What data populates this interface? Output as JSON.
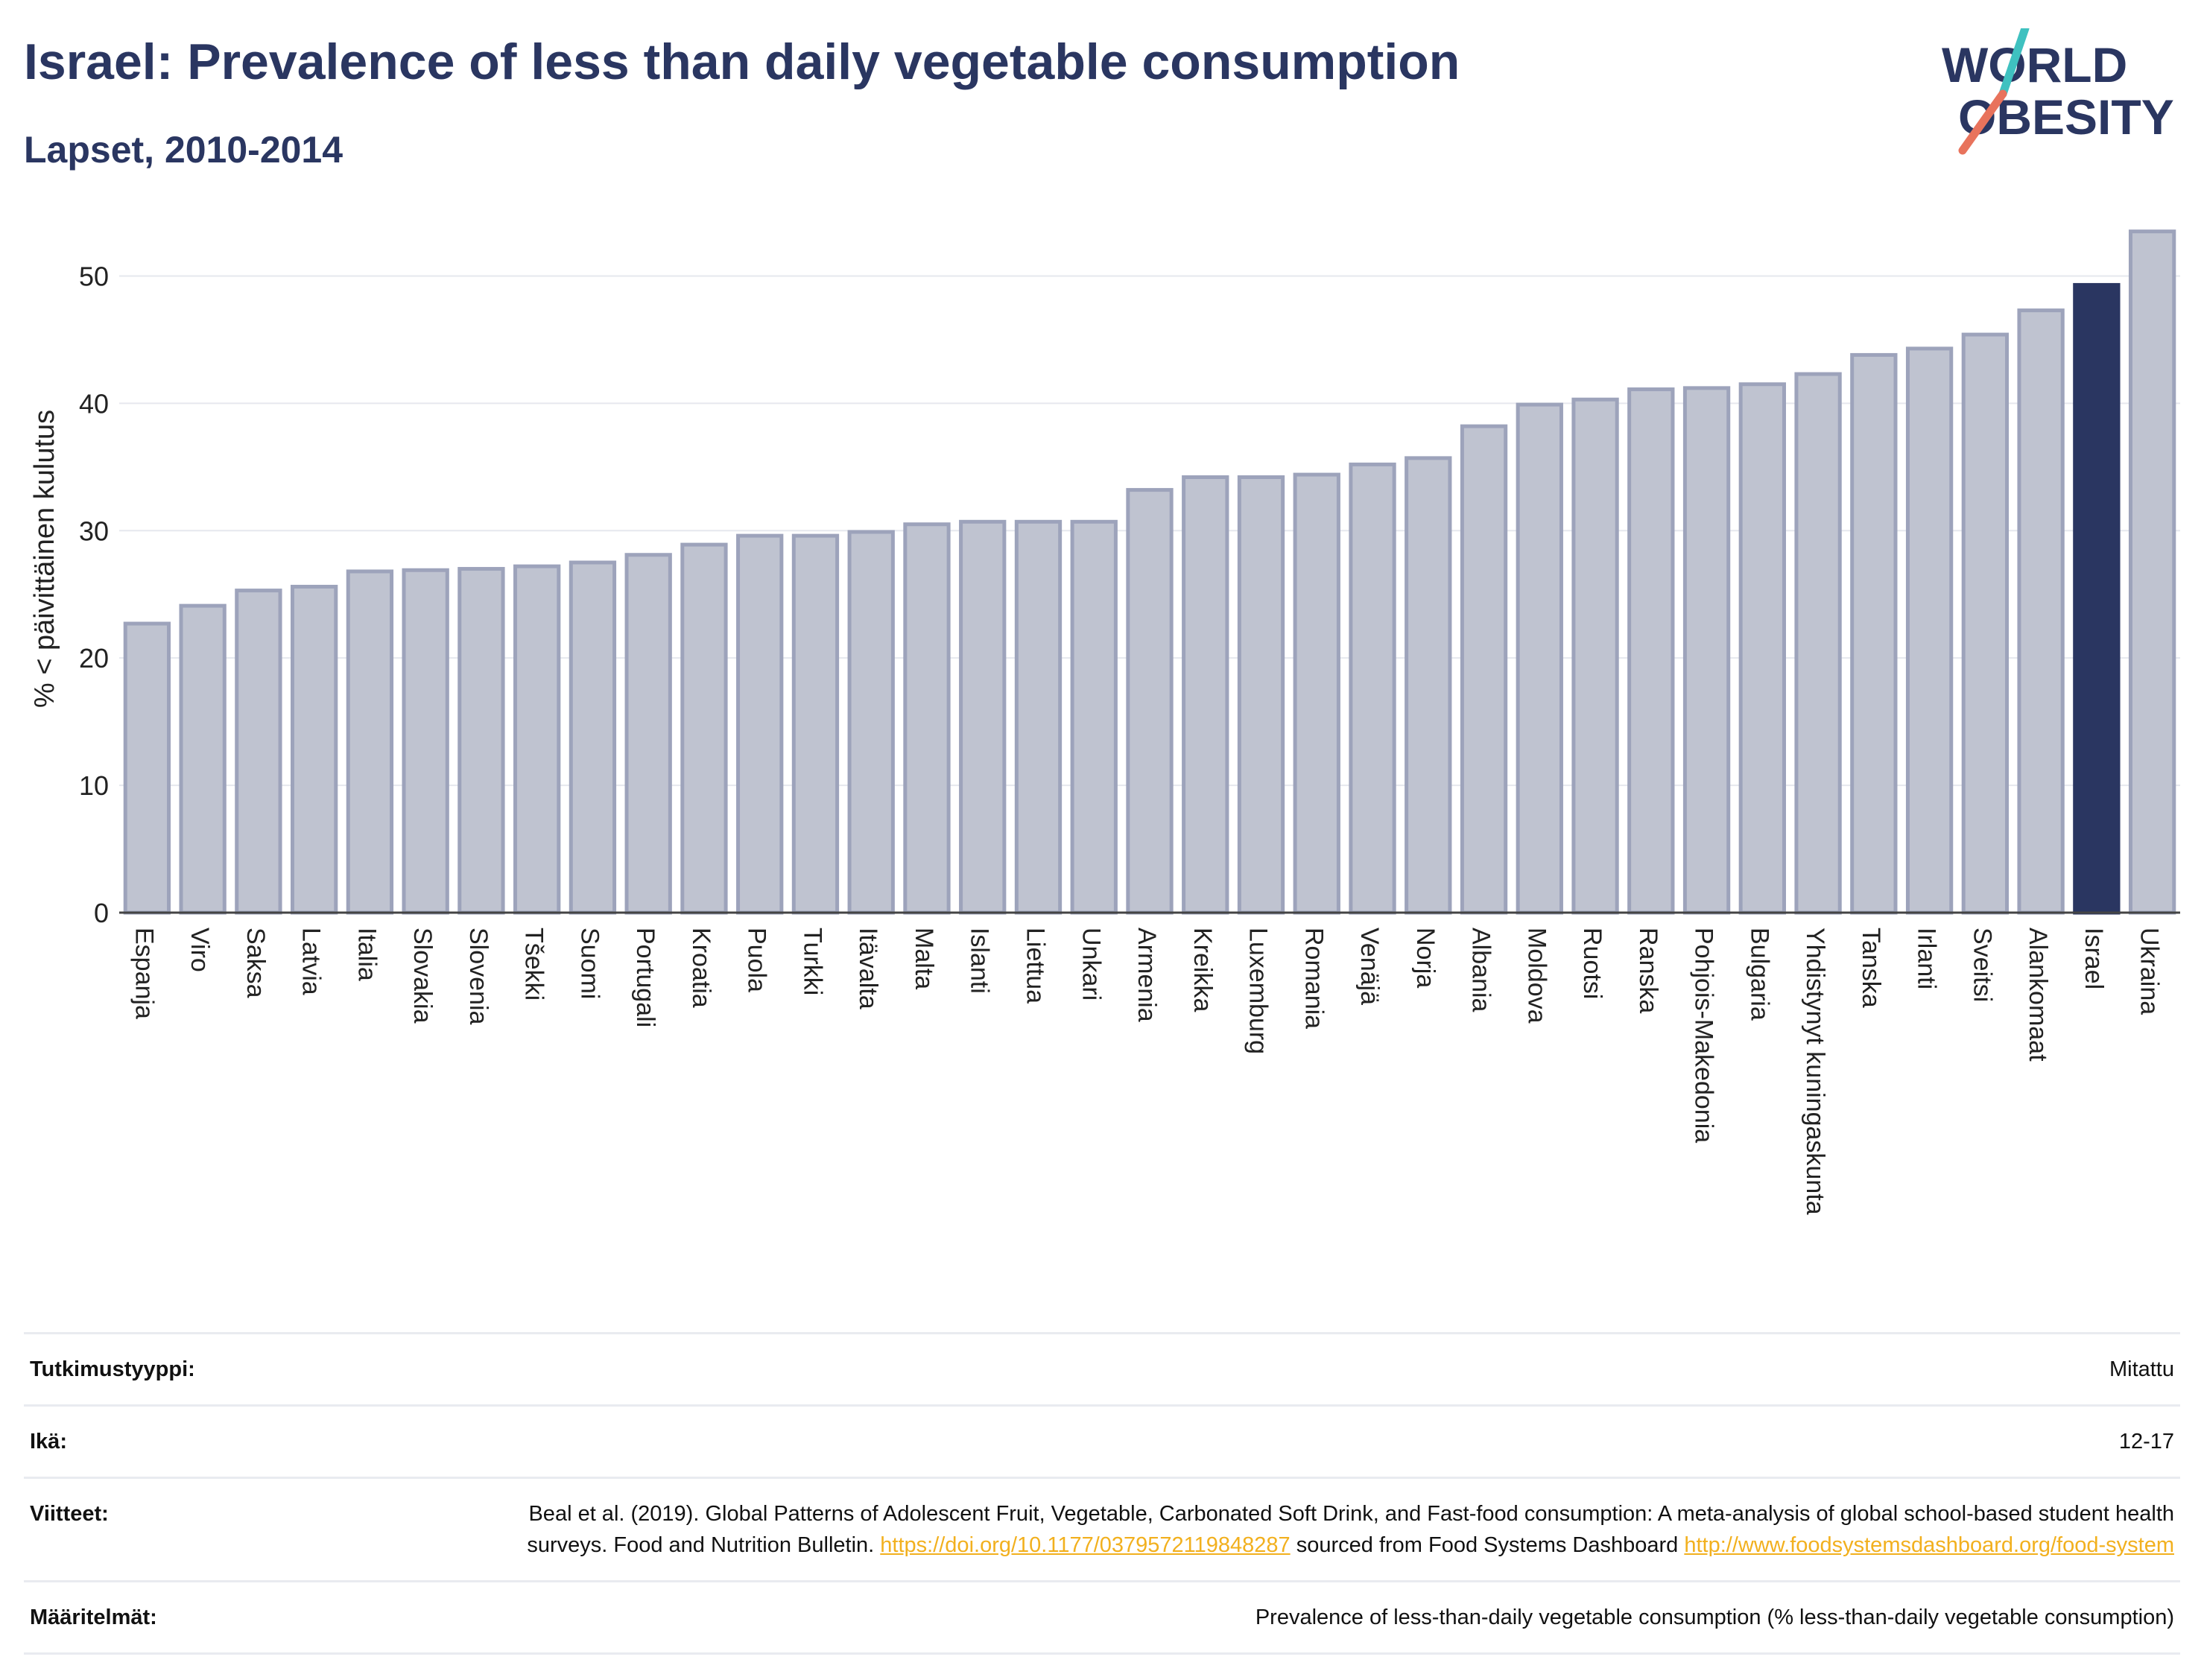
{
  "header": {
    "title": "Israel: Prevalence of less than daily vegetable consumption",
    "subtitle": "Lapset, 2010-2014",
    "logo_line1": "WORLD",
    "logo_line2": "OBESITY"
  },
  "colors": {
    "bar_default": "#bfc3d0",
    "bar_border": "#9da3bb",
    "bar_highlight": "#2a3661",
    "title": "#2a3661",
    "link": "#f2b01e",
    "logo_teal": "#3fc1c0",
    "logo_coral": "#e8735c"
  },
  "chart_data": {
    "type": "bar",
    "ylabel": "% < päivittäinen kulutus",
    "ylim": [
      0,
      55
    ],
    "yticks": [
      0,
      10,
      20,
      30,
      40,
      50
    ],
    "grid": true,
    "highlight": "Israel",
    "categories": [
      "Espanja",
      "Viro",
      "Saksa",
      "Latvia",
      "Italia",
      "Slovakia",
      "Slovenia",
      "Tšekki",
      "Suomi",
      "Portugali",
      "Kroatia",
      "Puola",
      "Turkki",
      "Itävalta",
      "Malta",
      "Islanti",
      "Liettua",
      "Unkari",
      "Armenia",
      "Kreikka",
      "Luxemburg",
      "Romania",
      "Venäjä",
      "Norja",
      "Albania",
      "Moldova",
      "Ruotsi",
      "Ranska",
      "Pohjois-Makedonia",
      "Bulgaria",
      "Yhdistynyt kuningaskunta",
      "Tanska",
      "Irlanti",
      "Sveitsi",
      "Alankomaat",
      "Israel",
      "Ukraina"
    ],
    "values": [
      22.7,
      24.1,
      25.3,
      25.6,
      26.8,
      26.9,
      27.0,
      27.2,
      27.5,
      28.1,
      28.9,
      29.6,
      29.6,
      29.9,
      30.5,
      30.7,
      30.7,
      30.7,
      33.2,
      34.2,
      34.2,
      34.4,
      35.2,
      35.7,
      38.2,
      39.9,
      40.3,
      41.1,
      41.2,
      41.5,
      42.3,
      43.8,
      44.3,
      45.4,
      47.3,
      49.3,
      53.5
    ]
  },
  "meta": {
    "study_type_label": "Tutkimustyyppi:",
    "study_type_value": "Mitattu",
    "age_label": "Ikä:",
    "age_value": "12-17",
    "refs_label": "Viitteet:",
    "refs_text_1": "Beal et al. (2019). Global Patterns of Adolescent Fruit, Vegetable, Carbonated Soft Drink, and Fast-food consumption: A meta-analysis of global school-based student health surveys. Food and Nutrition Bulletin.",
    "refs_link_1": "https://doi.org/10.1177/0379572119848287",
    "refs_text_2": "sourced from Food Systems Dashboard",
    "refs_link_2": "http://www.foodsystemsdashboard.org/food-system",
    "definitions_label": "Määritelmät:",
    "definitions_value": "Prevalence of less-than-daily vegetable consumption (% less-than-daily vegetable consumption)"
  }
}
